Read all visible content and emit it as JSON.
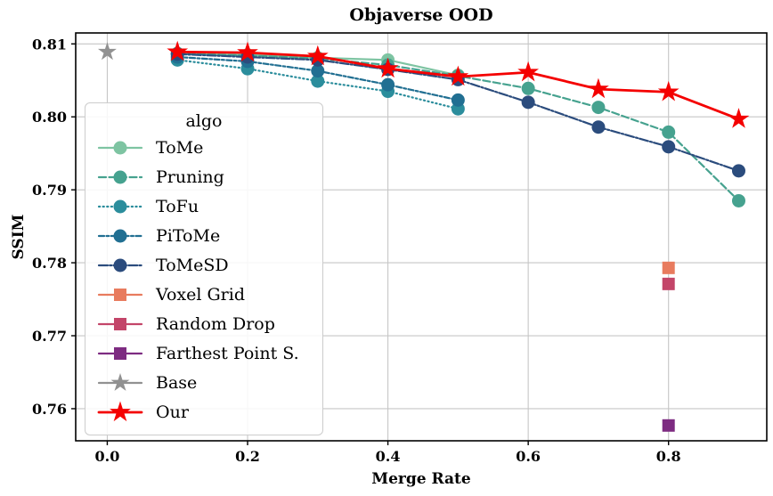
{
  "chart_data": {
    "type": "line",
    "title": "Objaverse OOD",
    "xlabel": "Merge Rate",
    "ylabel": "SSIM",
    "xlim": [
      -0.045,
      0.94
    ],
    "ylim": [
      0.7556,
      0.8115
    ],
    "xtick_values": [
      0.0,
      0.2,
      0.4,
      0.6,
      0.8
    ],
    "xtick_labels": [
      "0.0",
      "0.2",
      "0.4",
      "0.6",
      "0.8"
    ],
    "ytick_values": [
      0.81,
      0.8,
      0.79,
      0.78,
      0.77,
      0.76
    ],
    "ytick_labels": [
      "0.81",
      "0.80",
      "0.79",
      "0.78",
      "0.77",
      "0.76"
    ],
    "grid": true,
    "legend": {
      "title": "algo",
      "position": "left-inside"
    },
    "colors": {
      "grid": "#c6c6c6",
      "spine": "#000000",
      "background": "#ffffff"
    },
    "series": [
      {
        "name": "ToMe",
        "color": "#7ec4a2",
        "line_style": "solid",
        "marker": "circle",
        "x": [
          0.1,
          0.2,
          0.3,
          0.4,
          0.5
        ],
        "y": [
          0.8086,
          0.8085,
          0.8081,
          0.8078,
          0.8057
        ]
      },
      {
        "name": "Pruning",
        "color": "#46a28f",
        "line_style": "dashed",
        "marker": "circle",
        "x": [
          0.1,
          0.2,
          0.3,
          0.4,
          0.5,
          0.6,
          0.7,
          0.8,
          0.9
        ],
        "y": [
          0.8087,
          0.8084,
          0.808,
          0.8071,
          0.8056,
          0.8039,
          0.8013,
          0.7979,
          0.7885
        ]
      },
      {
        "name": "ToFu",
        "color": "#2b8d9c",
        "line_style": "dotted",
        "marker": "circle",
        "x": [
          0.1,
          0.2,
          0.3,
          0.4,
          0.5
        ],
        "y": [
          0.8078,
          0.8066,
          0.8049,
          0.8035,
          0.8011
        ]
      },
      {
        "name": "PiToMe",
        "color": "#216f92",
        "line_style": "dashdotdot",
        "marker": "circle",
        "x": [
          0.1,
          0.2,
          0.3,
          0.4,
          0.5
        ],
        "y": [
          0.8082,
          0.8076,
          0.8063,
          0.8044,
          0.8023
        ]
      },
      {
        "name": "ToMeSD",
        "color": "#2b4c7d",
        "line_style": "dashdot",
        "marker": "circle",
        "x": [
          0.1,
          0.2,
          0.3,
          0.4,
          0.5,
          0.6,
          0.7,
          0.8,
          0.9
        ],
        "y": [
          0.8086,
          0.8082,
          0.8078,
          0.8065,
          0.8051,
          0.802,
          0.7986,
          0.7959,
          0.7926
        ]
      },
      {
        "name": "Voxel Grid",
        "color": "#e87b5e",
        "line_style": "solid",
        "marker": "square",
        "x": [
          0.8
        ],
        "y": [
          0.7793
        ]
      },
      {
        "name": "Random Drop",
        "color": "#c34569",
        "line_style": "solid",
        "marker": "square",
        "x": [
          0.8
        ],
        "y": [
          0.7771
        ]
      },
      {
        "name": "Farthest Point S.",
        "color": "#7d2b81",
        "line_style": "solid",
        "marker": "square",
        "x": [
          0.8
        ],
        "y": [
          0.7577
        ]
      },
      {
        "name": "Base",
        "color": "#919191",
        "line_style": "solid",
        "marker": "star",
        "x": [
          0.0
        ],
        "y": [
          0.8089
        ]
      },
      {
        "name": "Our",
        "color": "#f40000",
        "line_style": "solid",
        "marker": "star",
        "x": [
          0.1,
          0.2,
          0.3,
          0.4,
          0.5,
          0.6,
          0.7,
          0.8,
          0.9
        ],
        "y": [
          0.8089,
          0.8088,
          0.8083,
          0.8066,
          0.8055,
          0.8061,
          0.8038,
          0.8034,
          0.7997
        ]
      }
    ]
  }
}
